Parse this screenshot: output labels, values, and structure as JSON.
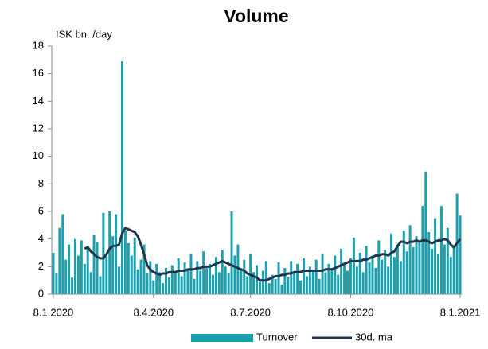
{
  "chart_data": {
    "type": "bar-line",
    "title": "Volume",
    "y_label": "ISK bn. /day",
    "categories": [
      "8.1.2020",
      null,
      null,
      null,
      null,
      null,
      null,
      null,
      null,
      null,
      null,
      null,
      null,
      null,
      null,
      null,
      null,
      null,
      null,
      null,
      null,
      null,
      null,
      null,
      null,
      null,
      null,
      null,
      null,
      null,
      null,
      null,
      "8.4.2020",
      null,
      null,
      null,
      null,
      null,
      null,
      null,
      null,
      null,
      null,
      null,
      null,
      null,
      null,
      null,
      null,
      null,
      null,
      null,
      null,
      null,
      null,
      null,
      null,
      null,
      null,
      null,
      null,
      null,
      null,
      "8.7.2020",
      null,
      null,
      null,
      null,
      null,
      null,
      null,
      null,
      null,
      null,
      null,
      null,
      null,
      null,
      null,
      null,
      null,
      null,
      null,
      null,
      null,
      null,
      null,
      null,
      null,
      null,
      null,
      null,
      null,
      null,
      null,
      "8.10.2020",
      null,
      null,
      null,
      null,
      null,
      null,
      null,
      null,
      null,
      null,
      null,
      null,
      null,
      null,
      null,
      null,
      null,
      null,
      null,
      null,
      null,
      null,
      null,
      null,
      null,
      null,
      null,
      null,
      null,
      null,
      null,
      null,
      null,
      null,
      "8.1.2021"
    ],
    "series": [
      {
        "name": "Turnover",
        "kind": "bar",
        "color": "#1aa0ae",
        "values": [
          3.0,
          1.5,
          4.8,
          5.8,
          2.5,
          3.6,
          1.2,
          4.0,
          2.8,
          3.9,
          2.2,
          3.5,
          1.6,
          4.3,
          3.8,
          1.3,
          5.9,
          2.7,
          6.0,
          4.2,
          5.8,
          2.0,
          16.9,
          4.6,
          3.7,
          2.8,
          4.1,
          1.8,
          2.5,
          3.6,
          1.5,
          2.4,
          1.0,
          2.2,
          1.6,
          0.8,
          1.9,
          1.2,
          2.1,
          1.5,
          2.6,
          1.3,
          2.3,
          1.8,
          2.9,
          1.1,
          2.4,
          1.7,
          3.1,
          1.9,
          2.2,
          1.4,
          2.7,
          1.6,
          3.2,
          2.0,
          1.5,
          6.0,
          2.8,
          3.6,
          1.8,
          2.5,
          1.3,
          2.9,
          1.6,
          2.1,
          0.9,
          1.7,
          2.4,
          0.8,
          1.4,
          1.1,
          2.3,
          0.7,
          1.9,
          1.2,
          2.4,
          1.5,
          2.2,
          1.0,
          2.6,
          1.3,
          2.0,
          1.7,
          2.5,
          1.1,
          2.9,
          1.6,
          2.2,
          1.9,
          2.8,
          1.4,
          3.3,
          2.1,
          1.7,
          2.6,
          4.1,
          2.0,
          3.0,
          1.6,
          3.5,
          2.3,
          2.8,
          1.9,
          3.9,
          2.5,
          3.2,
          2.0,
          4.4,
          2.7,
          3.6,
          2.4,
          4.6,
          3.1,
          5.0,
          3.4,
          4.2,
          3.8,
          6.4,
          8.9,
          4.5,
          3.3,
          5.5,
          2.9,
          6.4,
          3.6,
          4.8,
          2.7,
          3.4,
          7.3,
          5.7
        ]
      },
      {
        "name": "30d. ma",
        "kind": "line",
        "color": "#1f3550",
        "values": [
          null,
          null,
          null,
          null,
          null,
          null,
          null,
          null,
          null,
          null,
          3.3,
          3.4,
          3.1,
          2.9,
          2.7,
          2.6,
          2.6,
          2.9,
          3.3,
          3.5,
          3.5,
          3.6,
          4.4,
          4.8,
          4.7,
          4.6,
          4.5,
          4.2,
          3.6,
          2.9,
          2.1,
          1.8,
          1.6,
          1.5,
          1.4,
          1.5,
          1.5,
          1.6,
          1.6,
          1.6,
          1.7,
          1.7,
          1.7,
          1.8,
          1.8,
          1.8,
          1.9,
          1.9,
          2.0,
          2.0,
          2.0,
          2.1,
          2.2,
          2.3,
          2.4,
          2.3,
          2.2,
          2.1,
          2.0,
          1.9,
          1.8,
          1.7,
          1.5,
          1.4,
          1.3,
          1.2,
          1.0,
          1.0,
          1.0,
          1.1,
          1.2,
          1.3,
          1.3,
          1.4,
          1.4,
          1.5,
          1.5,
          1.6,
          1.6,
          1.6,
          1.7,
          1.7,
          1.7,
          1.7,
          1.7,
          1.7,
          1.7,
          1.8,
          1.8,
          1.8,
          1.9,
          2.0,
          2.1,
          2.2,
          2.3,
          2.4,
          2.4,
          2.4,
          2.4,
          2.5,
          2.5,
          2.6,
          2.7,
          2.8,
          2.8,
          2.9,
          2.9,
          2.8,
          3.0,
          3.1,
          3.5,
          3.8,
          3.8,
          3.7,
          3.8,
          3.8,
          3.9,
          3.8,
          3.9,
          3.9,
          3.8,
          3.7,
          3.8,
          3.9,
          3.9,
          4.0,
          3.9,
          3.6,
          3.4,
          3.7,
          4.0
        ]
      }
    ],
    "ylim": [
      0,
      18
    ],
    "yticks": [
      0,
      2,
      4,
      6,
      8,
      10,
      12,
      14,
      16,
      18
    ],
    "grid": false,
    "legend": "bottom"
  }
}
